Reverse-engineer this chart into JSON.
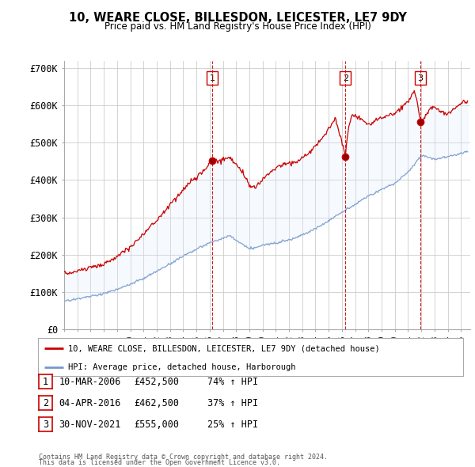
{
  "title": "10, WEARE CLOSE, BILLESDON, LEICESTER, LE7 9DY",
  "subtitle": "Price paid vs. HM Land Registry's House Price Index (HPI)",
  "legend_line1": "10, WEARE CLOSE, BILLESDON, LEICESTER, LE7 9DY (detached house)",
  "legend_line2": "HPI: Average price, detached house, Harborough",
  "footnote1": "Contains HM Land Registry data © Crown copyright and database right 2024.",
  "footnote2": "This data is licensed under the Open Government Licence v3.0.",
  "transactions": [
    {
      "num": 1,
      "date": "10-MAR-2006",
      "price": "£452,500",
      "change": "74% ↑ HPI",
      "year": 2006.19
    },
    {
      "num": 2,
      "date": "04-APR-2016",
      "price": "£462,500",
      "change": "37% ↑ HPI",
      "year": 2016.26
    },
    {
      "num": 3,
      "date": "30-NOV-2021",
      "price": "£555,000",
      "change": "25% ↑ HPI",
      "year": 2021.92
    }
  ],
  "transaction_prices": [
    452500,
    462500,
    555000
  ],
  "ylim": [
    0,
    720000
  ],
  "yticks": [
    0,
    100000,
    200000,
    300000,
    400000,
    500000,
    600000,
    700000
  ],
  "ytick_labels": [
    "£0",
    "£100K",
    "£200K",
    "£300K",
    "£400K",
    "£500K",
    "£600K",
    "£700K"
  ],
  "red_color": "#cc0000",
  "blue_color": "#7799cc",
  "fill_color": "#ddeeff",
  "vline_color": "#cc0000",
  "grid_color": "#cccccc",
  "bg_color": "#ffffff"
}
